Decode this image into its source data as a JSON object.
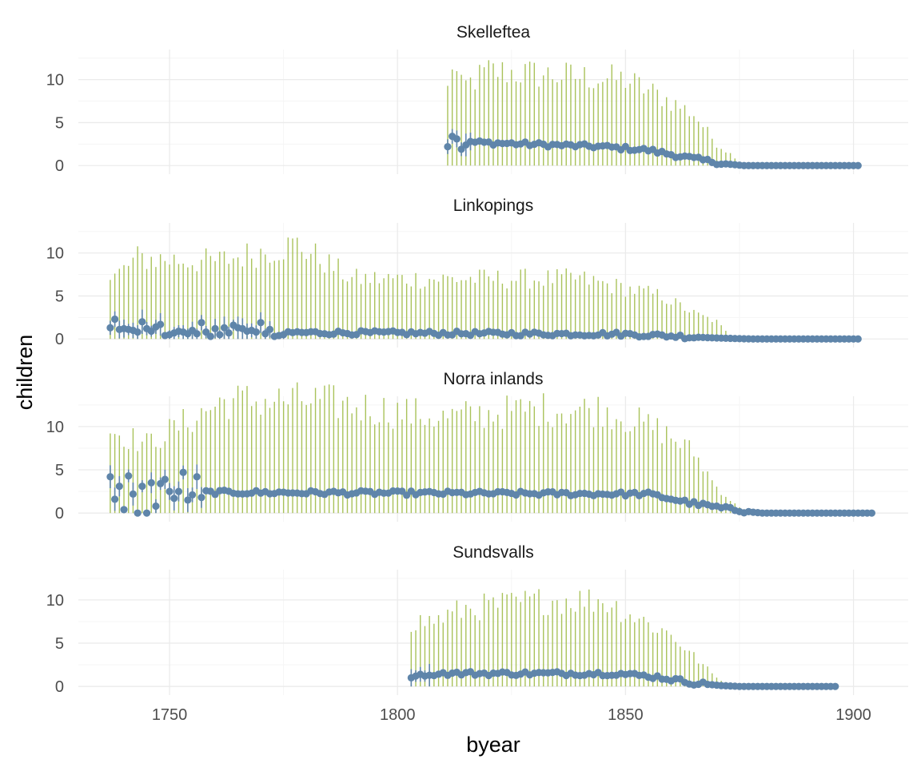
{
  "chart_data": {
    "type": "scatter",
    "subtype": "faceted point-range with min-max segments",
    "xlabel": "byear",
    "ylabel": "children",
    "xlim": [
      1730,
      1912
    ],
    "ylim": [
      -1,
      13.5
    ],
    "x_ticks": [
      1750,
      1800,
      1850,
      1900
    ],
    "y_ticks": [
      0,
      5,
      10
    ],
    "grid": true,
    "colors": {
      "points": "#5f85aa",
      "ranges": "#a9c25a",
      "grid_major": "#ebebeb",
      "grid_minor": "#f5f5f5"
    },
    "facets": [
      {
        "title": "Skelleftea",
        "years": [
          1811,
          1901
        ],
        "early_means": [
          2.2,
          3.4,
          3.1,
          1.9,
          2.4,
          2.8
        ],
        "plateau_mean": 2.7,
        "decline": [
          [
            1845,
            2.2
          ],
          [
            1855,
            1.8
          ],
          [
            1865,
            0.8
          ],
          [
            1872,
            0.2
          ],
          [
            1876,
            0
          ]
        ],
        "max_range": [
          [
            1811,
            8.8
          ],
          [
            1812,
            12
          ],
          [
            1814,
            9
          ],
          [
            1820,
            11
          ],
          [
            1850,
            10
          ],
          [
            1858,
            8
          ],
          [
            1865,
            6
          ],
          [
            1870,
            2.5
          ],
          [
            1874,
            1
          ],
          [
            1875,
            0
          ]
        ]
      },
      {
        "title": "Linkopings",
        "years": [
          1737,
          1901
        ],
        "early_means": [
          1.3,
          2.3,
          1.1,
          1.2,
          1.1,
          1.0,
          0.8,
          2.0,
          1.2,
          0.9,
          1.4,
          1.7,
          0.4,
          0.5,
          0.7,
          0.9,
          0.8,
          0.6,
          1.0,
          0.6,
          1.9,
          0.8,
          0.3,
          1.2,
          0.5,
          1.3,
          0.7,
          1.6,
          1.3,
          1.2,
          0.9,
          1.0,
          0.8,
          1.9,
          0.6,
          1.1,
          0.3,
          0.4,
          0.5
        ],
        "plateau_mean": 0.75,
        "decline": [
          [
            1850,
            0.55
          ],
          [
            1860,
            0.35
          ],
          [
            1868,
            0.15
          ],
          [
            1874,
            0.05
          ],
          [
            1878,
            0
          ]
        ],
        "max_range": [
          [
            1737,
            6.8
          ],
          [
            1743,
            9.4
          ],
          [
            1760,
            9
          ],
          [
            1778,
            11
          ],
          [
            1790,
            7
          ],
          [
            1840,
            7
          ],
          [
            1858,
            5
          ],
          [
            1865,
            3
          ],
          [
            1870,
            2
          ],
          [
            1873,
            0.3
          ],
          [
            1876,
            0
          ]
        ]
      },
      {
        "title": "Norra inlands",
        "years": [
          1737,
          1904
        ],
        "early_means": [
          4.2,
          1.6,
          3.1,
          0.4,
          4.3,
          2.2,
          0,
          3.1,
          0,
          3.5,
          0.8,
          3.4,
          3.9,
          2.5,
          1.7,
          2.5,
          4.7,
          1.5,
          2.1,
          4.2,
          1.8
        ],
        "plateau_mean": 2.4,
        "decline": [
          [
            1855,
            2.2
          ],
          [
            1865,
            1.1
          ],
          [
            1872,
            0.5
          ],
          [
            1878,
            0.1
          ],
          [
            1880,
            0
          ]
        ],
        "max_range": [
          [
            1737,
            9.6
          ],
          [
            1745,
            8
          ],
          [
            1762,
            13
          ],
          [
            1782,
            13
          ],
          [
            1810,
            11
          ],
          [
            1830,
            12
          ],
          [
            1845,
            12
          ],
          [
            1858,
            9.5
          ],
          [
            1865,
            7
          ],
          [
            1870,
            3
          ],
          [
            1874,
            1
          ],
          [
            1878,
            0
          ]
        ]
      },
      {
        "title": "Sundsvalls",
        "years": [
          1803,
          1896
        ],
        "early_means": [
          1.0,
          1.2,
          1.4,
          1.2,
          1.3
        ],
        "plateau_mean": 1.5,
        "decline": [
          [
            1848,
            1.5
          ],
          [
            1857,
            1.1
          ],
          [
            1865,
            0.4
          ],
          [
            1871,
            0.1
          ],
          [
            1875,
            0
          ]
        ],
        "max_range": [
          [
            1803,
            7.4
          ],
          [
            1808,
            7.6
          ],
          [
            1815,
            9
          ],
          [
            1833,
            10
          ],
          [
            1845,
            10
          ],
          [
            1855,
            7.3
          ],
          [
            1860,
            6
          ],
          [
            1866,
            3
          ],
          [
            1870,
            1
          ],
          [
            1874,
            0
          ]
        ]
      }
    ]
  }
}
